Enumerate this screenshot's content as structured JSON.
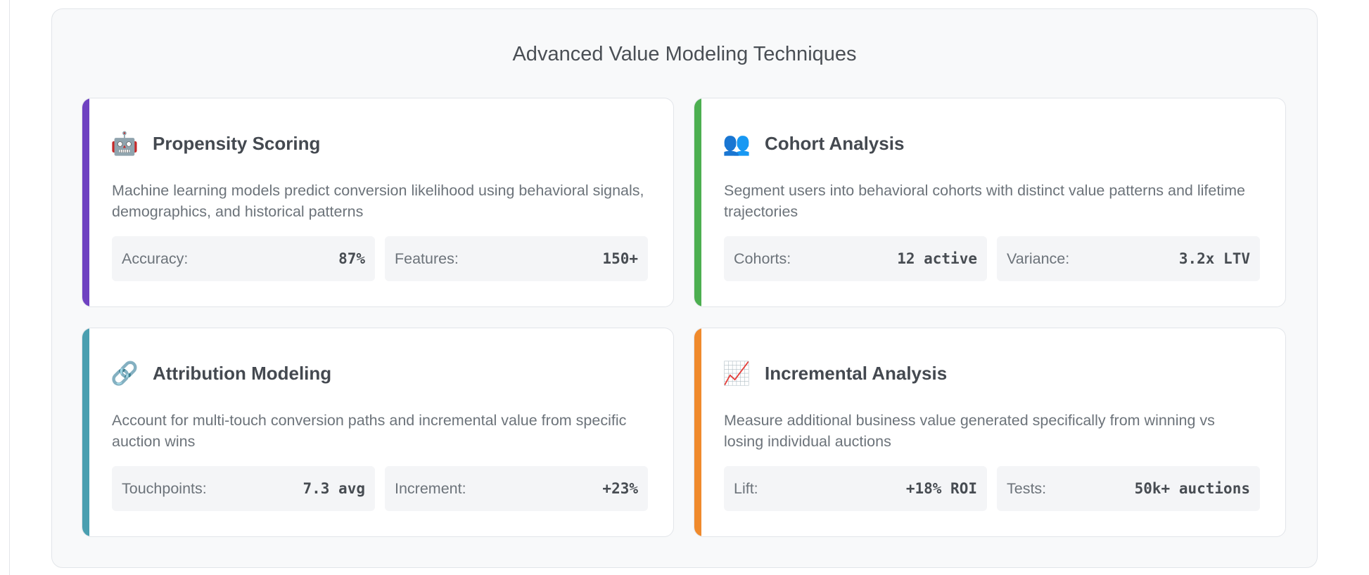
{
  "section": {
    "title": "Advanced Value Modeling Techniques"
  },
  "cards": [
    {
      "icon": "🤖",
      "icon_name": "robot-icon",
      "accent": "#6f42c1",
      "title": "Propensity Scoring",
      "description": "Machine learning models predict conversion likelihood using behavioral signals, demographics, and historical patterns",
      "stats": [
        {
          "label": "Accuracy:",
          "value": "87%"
        },
        {
          "label": "Features:",
          "value": "150+"
        }
      ]
    },
    {
      "icon": "👥",
      "icon_name": "users-icon",
      "accent": "#4caf50",
      "title": "Cohort Analysis",
      "description": "Segment users into behavioral cohorts with distinct value patterns and lifetime trajectories",
      "stats": [
        {
          "label": "Cohorts:",
          "value": "12 active"
        },
        {
          "label": "Variance:",
          "value": "3.2x LTV"
        }
      ]
    },
    {
      "icon": "🔗",
      "icon_name": "link-icon",
      "accent": "#4a9fb0",
      "title": "Attribution Modeling",
      "description": "Account for multi-touch conversion paths and incremental value from specific auction wins",
      "stats": [
        {
          "label": "Touchpoints:",
          "value": "7.3 avg"
        },
        {
          "label": "Increment:",
          "value": "+23%"
        }
      ]
    },
    {
      "icon": "📈",
      "icon_name": "trend-chart-icon",
      "accent": "#f08a2c",
      "title": "Incremental Analysis",
      "description": "Measure additional business value generated specifically from winning vs losing individual auctions",
      "stats": [
        {
          "label": "Lift:",
          "value": "+18% ROI"
        },
        {
          "label": "Tests:",
          "value": "50k+ auctions"
        }
      ]
    }
  ]
}
